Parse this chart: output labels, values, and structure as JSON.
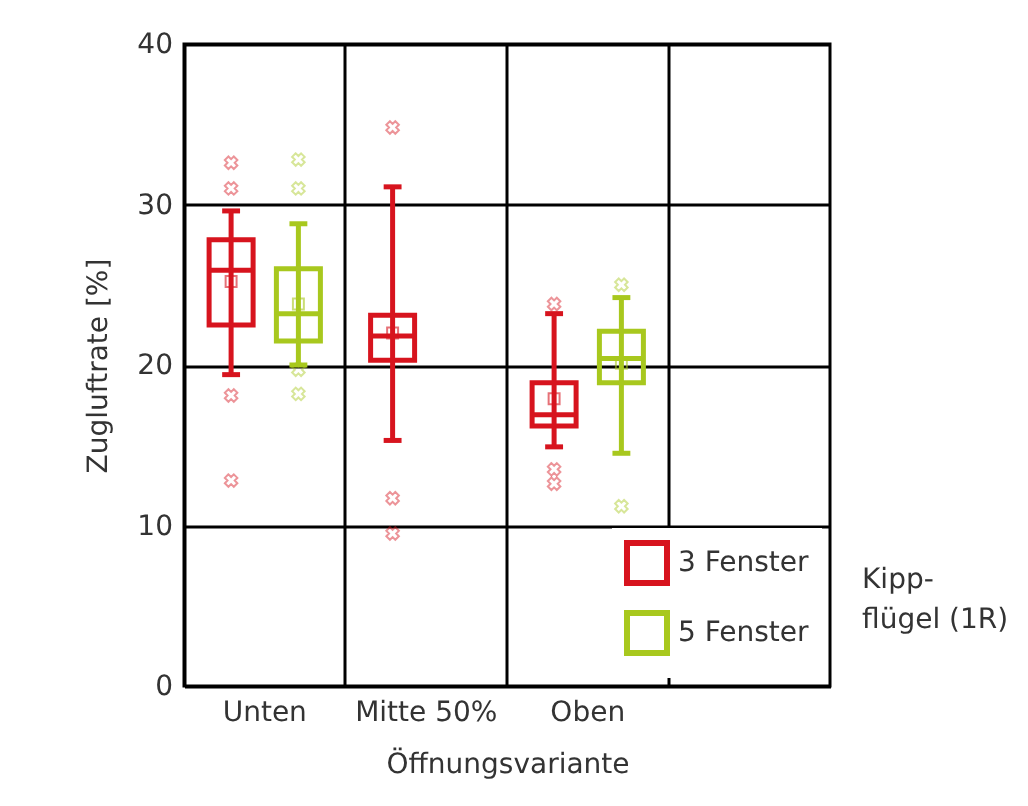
{
  "chart_data": {
    "type": "box",
    "xlabel": "Öffnungsvariante",
    "ylabel": "Zugluftrate [%]",
    "categories": [
      "Unten",
      "Mitte 50%",
      "Oben",
      null
    ],
    "ylim": [
      0,
      40
    ],
    "yticks": [
      0,
      10,
      20,
      30,
      40
    ],
    "grid": true,
    "legend": "bottom right",
    "marker": "square",
    "series": [
      {
        "name": "3 Fenster",
        "color": "#d7141e",
        "boxes": [
          {
            "low": 19.4,
            "q1": 22.5,
            "median": 25.9,
            "q3": 27.8,
            "high": 29.6,
            "mean": 25.2,
            "outliers": [
              32.6,
              31.0,
              18.1,
              12.8
            ]
          },
          {
            "low": 15.3,
            "q1": 20.3,
            "median": 21.8,
            "q3": 23.1,
            "high": 31.1,
            "mean": 22.0,
            "outliers": [
              34.8,
              11.7,
              9.5
            ]
          },
          {
            "low": 14.9,
            "q1": 16.2,
            "median": 16.9,
            "q3": 18.9,
            "high": 23.2,
            "mean": 17.9,
            "outliers": [
              23.8,
              13.5,
              12.6
            ]
          },
          null
        ]
      },
      {
        "name": "5 Fenster",
        "color": "#a8c81e",
        "boxes": [
          {
            "low": 20.0,
            "q1": 21.5,
            "median": 23.2,
            "q3": 26.0,
            "high": 28.8,
            "mean": 23.8,
            "outliers": [
              32.8,
              31.0,
              19.7,
              18.2
            ]
          },
          null,
          {
            "low": 14.5,
            "q1": 18.9,
            "median": 20.4,
            "q3": 22.1,
            "high": 24.2,
            "mean": 20.1,
            "outliers": [
              25.0,
              11.2
            ]
          },
          null
        ]
      }
    ],
    "annotations": [
      "Kipp-\nflügel (1R)"
    ]
  }
}
